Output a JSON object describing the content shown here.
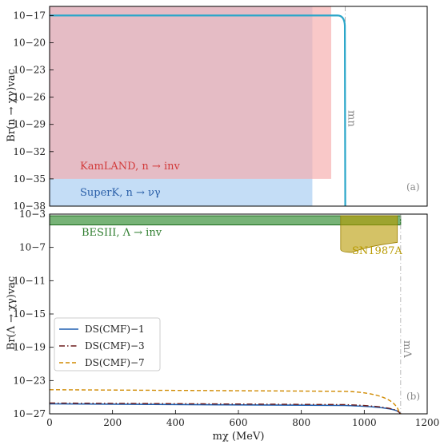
{
  "colors": {
    "kamland": "#e83a3a",
    "superk": "#3d8de0",
    "besiii": "#2e8b2e",
    "sn1987a": "#b89a00",
    "ds1": "#1f5fb0",
    "ds3": "#6b1b1b",
    "ds7": "#d08a00",
    "cyan": "#2aa6c9"
  },
  "chart_data": [
    {
      "panel": "(a)",
      "type": "line",
      "ylabel": "Br(n → χγ)vac",
      "ylog": true,
      "ylim_exp": [
        -38,
        -16
      ],
      "xlim": [
        0,
        1200
      ],
      "yticks": [
        {
          "exp": -17,
          "label": "10−17"
        },
        {
          "exp": -20,
          "label": "10−20"
        },
        {
          "exp": -23,
          "label": "10−23"
        },
        {
          "exp": -26,
          "label": "10−26"
        },
        {
          "exp": -29,
          "label": "10−29"
        },
        {
          "exp": -32,
          "label": "10−32"
        },
        {
          "exp": -35,
          "label": "10−35"
        },
        {
          "exp": -38,
          "label": "10−38"
        }
      ],
      "regions": [
        {
          "name": "KamLAND, n → inv",
          "x": [
            0,
            895
          ],
          "y_exp": [
            -35,
            -16
          ],
          "color": "kamland",
          "opacity": 0.28
        },
        {
          "name": "SuperK, n → νγ",
          "x": [
            0,
            835
          ],
          "y_exp": [
            -38,
            -35
          ],
          "color": "superk",
          "opacity": 0.3
        },
        {
          "name": "SuperK overlap",
          "x": [
            0,
            835
          ],
          "y_exp": [
            -35,
            -16
          ],
          "color": "superk",
          "opacity": 0.12
        }
      ],
      "vline": {
        "label": "mn",
        "x": 939.6
      },
      "curves": [
        {
          "name": "n curve",
          "flat_exp": -17.0,
          "x_end": 939.6,
          "bend_start": 915,
          "bend_depth": 0.6,
          "color": "cyan"
        }
      ]
    },
    {
      "panel": "(b)",
      "type": "line",
      "ylabel": "Br(Λ → χγ)vac",
      "xlabel": "mχ (MeV)",
      "ylog": true,
      "ylim_exp": [
        -27,
        -3
      ],
      "xlim": [
        0,
        1200
      ],
      "xticks": [
        0,
        200,
        400,
        600,
        800,
        1000,
        1200
      ],
      "yticks": [
        {
          "exp": -3,
          "label": "10−3"
        },
        {
          "exp": -7,
          "label": "10−7"
        },
        {
          "exp": -11,
          "label": "10−11"
        },
        {
          "exp": -15,
          "label": "10−15"
        },
        {
          "exp": -19,
          "label": "10−19"
        },
        {
          "exp": -23,
          "label": "10−23"
        },
        {
          "exp": -27,
          "label": "10−27"
        }
      ],
      "regions": [
        {
          "name": "BESIII, Λ → inv",
          "x": [
            0,
            1115.7
          ],
          "y_exp": [
            -4.3,
            -3.2
          ],
          "color": "besiii",
          "opacity": 0.65
        },
        {
          "name": "SN1987A",
          "x_start": 925,
          "x_end": 1105,
          "top_exp": -3.2,
          "bottom_exp_start": -7.6,
          "bottom_exp_end": -6.4,
          "color": "sn1987a",
          "opacity": 0.6
        }
      ],
      "vline": {
        "label": "mΛ",
        "x": 1115.7
      },
      "series": [
        {
          "name": "DS(CMF)−1",
          "style": "solid",
          "flat_exp": -25.8,
          "x_end": 1115.7,
          "color": "ds1"
        },
        {
          "name": "DS(CMF)−3",
          "style": "dashdot",
          "flat_exp": -25.7,
          "x_end": 1115.7,
          "color": "ds3"
        },
        {
          "name": "DS(CMF)−7",
          "style": "dashed",
          "flat_exp": -24.1,
          "x_end": 1115.7,
          "color": "ds7"
        }
      ]
    }
  ]
}
